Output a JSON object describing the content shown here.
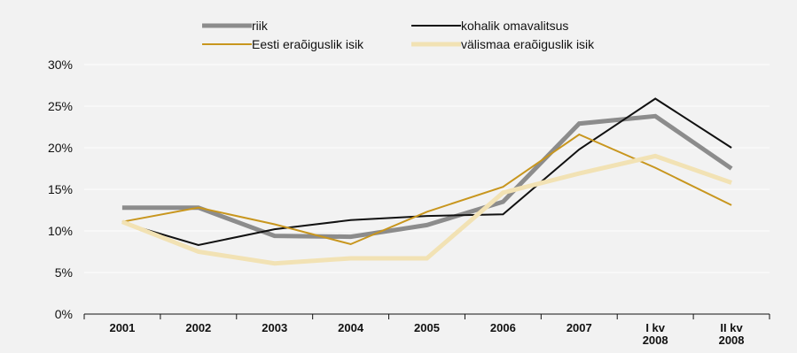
{
  "chart_data": {
    "type": "line",
    "title": "",
    "xlabel": "",
    "ylabel": "",
    "categories": [
      [
        "2001"
      ],
      [
        "2002"
      ],
      [
        "2003"
      ],
      [
        "2004"
      ],
      [
        "2005"
      ],
      [
        "2006"
      ],
      [
        "2007"
      ],
      [
        "I kv",
        "2008"
      ],
      [
        "II kv",
        "2008"
      ]
    ],
    "ylim": [
      0,
      30
    ],
    "yticks": [
      0,
      5,
      10,
      15,
      20,
      25,
      30
    ],
    "ytick_suffix": "%",
    "grid": true,
    "legend_position": "top",
    "series": [
      {
        "name": "riik",
        "color": "#8c8c8c",
        "width": 5,
        "values": [
          12.8,
          12.8,
          9.4,
          9.3,
          10.7,
          13.5,
          22.9,
          23.8,
          17.5
        ]
      },
      {
        "name": "kohalik omavalitsus",
        "color": "#111111",
        "width": 2,
        "values": [
          11.0,
          8.3,
          10.2,
          11.3,
          11.8,
          12.0,
          19.8,
          25.9,
          20.0
        ]
      },
      {
        "name": "Eesti eraõiguslik isik",
        "color": "#c8961e",
        "width": 2,
        "values": [
          11.1,
          12.8,
          10.8,
          8.4,
          12.3,
          15.3,
          21.6,
          17.6,
          13.1
        ]
      },
      {
        "name": "välismaa eraõiguslik isik",
        "color": "#f2e2b4",
        "width": 5,
        "values": [
          11.1,
          7.5,
          6.1,
          6.7,
          6.7,
          14.6,
          16.9,
          19.0,
          15.8
        ]
      }
    ]
  }
}
